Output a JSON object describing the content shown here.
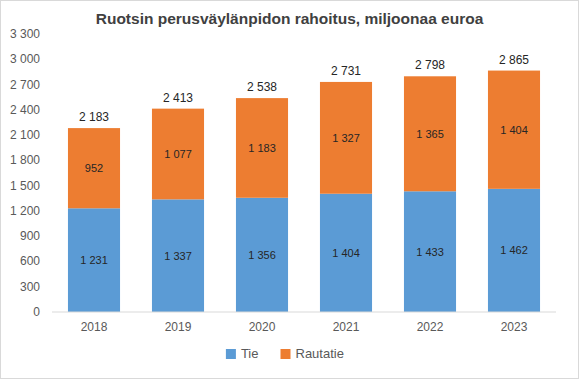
{
  "chart_data": {
    "type": "bar",
    "title": "Ruotsin perusväylänpidon rahoitus, miljoonaa euroa",
    "categories": [
      "2018",
      "2019",
      "2020",
      "2021",
      "2022",
      "2023"
    ],
    "series": [
      {
        "name": "Tie",
        "color": "#5b9bd5",
        "values": [
          1231,
          1337,
          1356,
          1404,
          1433,
          1462
        ],
        "value_labels": [
          "1 231",
          "1 337",
          "1 356",
          "1 404",
          "1 433",
          "1 462"
        ]
      },
      {
        "name": "Rautatie",
        "color": "#ed7d31",
        "values": [
          952,
          1077,
          1183,
          1327,
          1365,
          1404
        ],
        "value_labels": [
          "952",
          "1 077",
          "1 183",
          "1 327",
          "1 365",
          "1 404"
        ]
      }
    ],
    "totals": {
      "values": [
        2183,
        2413,
        2538,
        2731,
        2798,
        2865
      ],
      "value_labels": [
        "2 183",
        "2 413",
        "2 538",
        "2 731",
        "2 798",
        "2 865"
      ]
    },
    "ylim": [
      0,
      3300
    ],
    "yticks": [
      0,
      300,
      600,
      900,
      {
        "value": 1200,
        "label": "1 200"
      },
      {
        "value": 1500,
        "label": "1 500"
      },
      {
        "value": 1800,
        "label": "1 800"
      },
      {
        "value": 2100,
        "label": "2 100"
      },
      {
        "value": 2400,
        "label": "2 400"
      },
      {
        "value": 2700,
        "label": "2 700"
      },
      {
        "value": 3000,
        "label": "3 000"
      },
      {
        "value": 3300,
        "label": "3 300"
      }
    ],
    "stacked": true,
    "data_labels": true,
    "grid": false,
    "legend": "bottom"
  }
}
